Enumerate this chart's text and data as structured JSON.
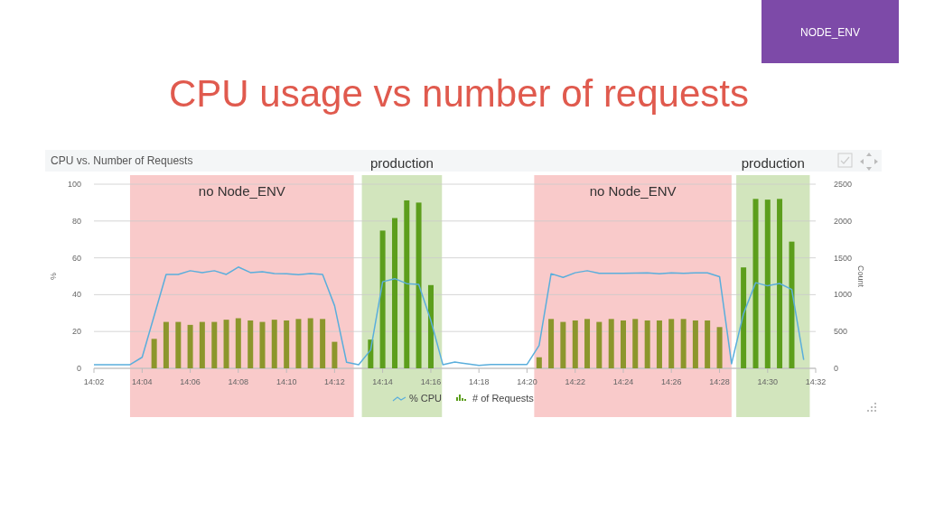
{
  "chart_data": {
    "type": "line",
    "title": "CPU usage vs number of requests",
    "subtitle": "CPU vs. Number of Requests",
    "ylabel": "%",
    "y2label": "Count",
    "annotations": [
      "NODE_ENV"
    ],
    "xlim": [
      14.0333,
      14.5333
    ],
    "xticks": [
      {
        "value": 14.0333,
        "label": "14:02"
      },
      {
        "value": 14.0667,
        "label": "14:04"
      },
      {
        "value": 14.1,
        "label": "14:06"
      },
      {
        "value": 14.1333,
        "label": "14:08"
      },
      {
        "value": 14.1667,
        "label": "14:10"
      },
      {
        "value": 14.2,
        "label": "14:12"
      },
      {
        "value": 14.2333,
        "label": "14:14"
      },
      {
        "value": 14.2667,
        "label": "14:16"
      },
      {
        "value": 14.3,
        "label": "14:18"
      },
      {
        "value": 14.3333,
        "label": "14:20"
      },
      {
        "value": 14.3667,
        "label": "14:22"
      },
      {
        "value": 14.4,
        "label": "14:24"
      },
      {
        "value": 14.4333,
        "label": "14:26"
      },
      {
        "value": 14.4667,
        "label": "14:28"
      },
      {
        "value": 14.5,
        "label": "14:30"
      },
      {
        "value": 14.5333,
        "label": "14:32"
      }
    ],
    "ylim": [
      0,
      100
    ],
    "yticks": [
      0,
      20,
      40,
      60,
      80,
      100
    ],
    "y2lim": [
      0,
      2500
    ],
    "y2ticks": [
      0,
      500,
      1000,
      1500,
      2000,
      2500
    ],
    "grid": "y",
    "legend": "bottom",
    "bands": [
      {
        "axis": "x",
        "from": 14.0583,
        "to": 14.2133,
        "label": "no Node_ENV",
        "color": "#f9caca"
      },
      {
        "axis": "x",
        "from": 14.2189,
        "to": 14.2744,
        "label": "production",
        "color": "#d2e5bd"
      },
      {
        "axis": "x",
        "from": 14.3383,
        "to": 14.475,
        "label": "no Node_ENV",
        "color": "#f9caca"
      },
      {
        "axis": "x",
        "from": 14.4783,
        "to": 14.5292,
        "label": "production",
        "color": "#d2e5bd"
      }
    ],
    "series": [
      {
        "name": "# of Requests",
        "type": "bar",
        "axis": "y2",
        "x": [
          14.075,
          14.0833,
          14.0917,
          14.1,
          14.1083,
          14.1167,
          14.125,
          14.1333,
          14.1417,
          14.15,
          14.1583,
          14.1667,
          14.175,
          14.1833,
          14.1917,
          14.2,
          14.225,
          14.2333,
          14.2417,
          14.25,
          14.2583,
          14.2667,
          14.3417,
          14.35,
          14.3583,
          14.3667,
          14.375,
          14.3833,
          14.3917,
          14.4,
          14.4083,
          14.4167,
          14.425,
          14.4333,
          14.4417,
          14.45,
          14.4583,
          14.4667,
          14.4833,
          14.4917,
          14.5,
          14.5083,
          14.5167
        ],
        "values": [
          400,
          630,
          630,
          590,
          630,
          630,
          660,
          680,
          650,
          630,
          660,
          650,
          670,
          680,
          670,
          360,
          390,
          1870,
          2040,
          2280,
          2250,
          1130,
          150,
          670,
          630,
          650,
          670,
          630,
          670,
          650,
          670,
          650,
          650,
          670,
          670,
          650,
          650,
          560,
          1370,
          2300,
          2290,
          2300,
          1720
        ],
        "colors": [
          "#8c962c",
          "#8c962c",
          "#8c962c",
          "#8c962c",
          "#8c962c",
          "#8c962c",
          "#8c962c",
          "#8c962c",
          "#8c962c",
          "#8c962c",
          "#8c962c",
          "#8c962c",
          "#8c962c",
          "#8c962c",
          "#8c962c",
          "#8c962c",
          "#5c9e1c",
          "#5c9e1c",
          "#5c9e1c",
          "#5c9e1c",
          "#5c9e1c",
          "#5c9e1c",
          "#8c962c",
          "#8c962c",
          "#8c962c",
          "#8c962c",
          "#8c962c",
          "#8c962c",
          "#8c962c",
          "#8c962c",
          "#8c962c",
          "#8c962c",
          "#8c962c",
          "#8c962c",
          "#8c962c",
          "#8c962c",
          "#8c962c",
          "#8c962c",
          "#5c9e1c",
          "#5c9e1c",
          "#5c9e1c",
          "#5c9e1c",
          "#5c9e1c"
        ]
      },
      {
        "name": "% CPU",
        "color": "#5aaedc",
        "x": [
          14.0333,
          14.0583,
          14.0667,
          14.0833,
          14.0917,
          14.1,
          14.1083,
          14.1167,
          14.125,
          14.1333,
          14.1417,
          14.15,
          14.1583,
          14.1667,
          14.175,
          14.1833,
          14.1917,
          14.2,
          14.2083,
          14.2167,
          14.225,
          14.2333,
          14.2417,
          14.25,
          14.2583,
          14.2667,
          14.275,
          14.2833,
          14.3,
          14.3083,
          14.3333,
          14.3417,
          14.35,
          14.3583,
          14.3667,
          14.375,
          14.3833,
          14.4,
          14.4167,
          14.425,
          14.4333,
          14.4417,
          14.45,
          14.4583,
          14.4667,
          14.475,
          14.4833,
          14.4917,
          14.5,
          14.5083,
          14.5167,
          14.525
        ],
        "values": [
          2,
          2,
          6,
          51,
          51,
          53,
          52,
          53,
          51,
          55,
          52,
          52.5,
          51.5,
          51.3,
          50.8,
          51.5,
          51,
          34,
          3.3,
          2,
          10,
          47,
          48.7,
          46,
          45.6,
          26,
          2,
          3.4,
          1.6,
          2.1,
          2.1,
          12.4,
          51.4,
          49.4,
          51.9,
          53,
          51.6,
          51.6,
          51.8,
          51.4,
          51.8,
          51.6,
          51.8,
          51.8,
          49.8,
          2.5,
          29.7,
          46.5,
          44.8,
          46.1,
          42.8,
          4.6
        ]
      }
    ]
  }
}
